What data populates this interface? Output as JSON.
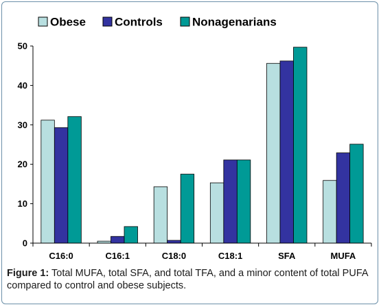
{
  "chart_data": {
    "type": "bar",
    "categories": [
      "C16:0",
      "C16:1",
      "C18:0",
      "C18:1",
      "SFA",
      "MUFA"
    ],
    "series": [
      {
        "name": "Obese",
        "values": [
          31.2,
          0.5,
          14.3,
          15.3,
          45.6,
          15.9
        ],
        "color": "#b8dfe0"
      },
      {
        "name": "Controls",
        "values": [
          29.3,
          1.7,
          0.7,
          21.1,
          46.2,
          22.9
        ],
        "color": "#3333a0"
      },
      {
        "name": "Nonagenarians",
        "values": [
          32.1,
          4.2,
          17.5,
          21.1,
          49.7,
          25.1
        ],
        "color": "#009a96"
      }
    ],
    "ylim": [
      0,
      50
    ],
    "yticks": [
      0,
      10,
      20,
      30,
      40,
      50
    ],
    "legend_position": "top",
    "grid": false
  },
  "caption": {
    "label": "Figure 1:",
    "text": " Total MUFA, total SFA, and total TFA, and a minor content of total PUFA compared to control and obese subjects."
  }
}
